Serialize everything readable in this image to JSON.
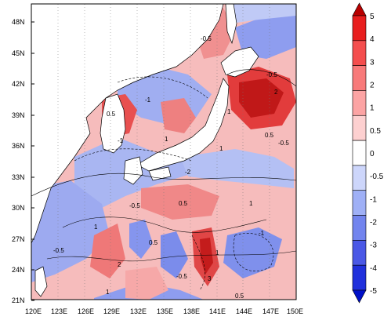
{
  "map": {
    "x_ticks": [
      "120E",
      "123E",
      "126E",
      "129E",
      "132E",
      "135E",
      "138E",
      "141E",
      "144E",
      "147E",
      "150E"
    ],
    "y_ticks": [
      "48N",
      "45N",
      "42N",
      "39N",
      "36N",
      "33N",
      "30N",
      "27N",
      "24N",
      "21N"
    ],
    "contour_labels": [
      "-0.5",
      "-1",
      "0.5",
      "1",
      "2",
      "3",
      "-0.5",
      "1",
      "-0.5",
      "0.5",
      "-1",
      "1",
      "-2",
      "1",
      "0.5",
      "1",
      "-0.5",
      "2",
      "1",
      "-0.5",
      "0.5",
      "1",
      "-1",
      "-0.5",
      "0.5"
    ]
  },
  "colorbar": {
    "labels": [
      "5",
      "4",
      "3",
      "2",
      "1",
      "0.5",
      "0",
      "-0.5",
      "-1",
      "-2",
      "-3",
      "-4",
      "-5"
    ],
    "colors": [
      "#b80000",
      "#e81e1e",
      "#f44e4e",
      "#f87a7a",
      "#fca4a4",
      "#fdd0d0",
      "#ffffff",
      "#cdd6fb",
      "#9fb0f6",
      "#7284ee",
      "#4a58e6",
      "#2030dc",
      "#0010c8"
    ]
  },
  "colors": {
    "land": "#ffffff",
    "ocean_base": "#f7c4c4",
    "warm_strong": "#e85a5a",
    "cool": "#8fa0ee",
    "coast": "#000000"
  }
}
